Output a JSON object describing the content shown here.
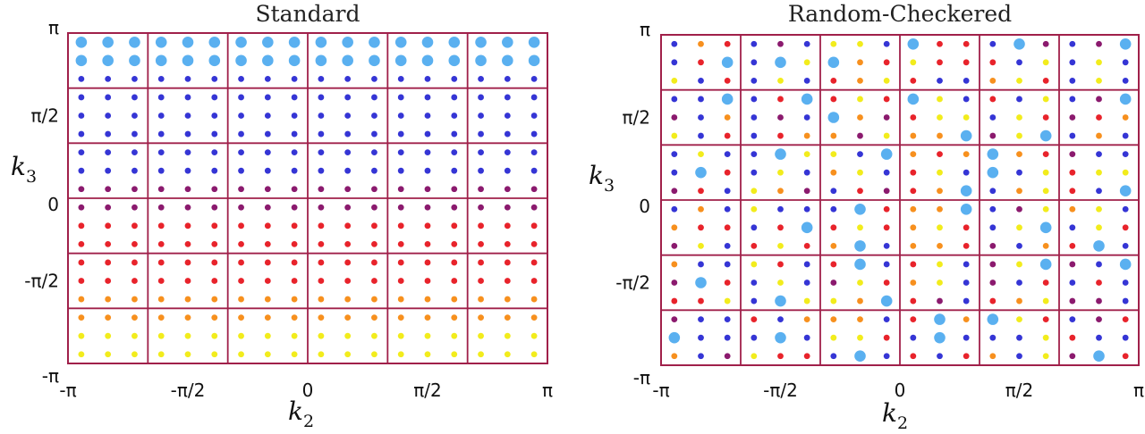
{
  "chart_data": [
    {
      "type": "scatter",
      "title": "Standard",
      "xlabel": "k",
      "xlabel_sub": "2",
      "ylabel": "k",
      "ylabel_sub": "3",
      "xlim": [
        -3.1416,
        3.1416
      ],
      "ylim": [
        -3.1416,
        3.1416
      ],
      "xticks": [
        "-π",
        "-π/2",
        "0",
        "π/2",
        "π"
      ],
      "yticks": [
        "-π",
        "-π/2",
        "0",
        "π/2",
        "π"
      ],
      "block_grid": {
        "cols": 6,
        "rows": 6
      },
      "points_per_block": {
        "cols": 3,
        "rows": 3
      },
      "colors": {
        "b": "#5ab0f0",
        "d": "#3535d5",
        "p": "#8b1a6e",
        "r": "#e8232b",
        "o": "#f7901e",
        "y": "#f2ec1c",
        "frame": "#a0204a"
      },
      "point_rows_top_to_bottom": [
        "bbbbbbbbbbbbbbbbbb",
        "bbbbbbbbbbbbbbbbbb",
        "dddddddddddddddddd",
        "dddddddddddddddddd",
        "dddddddddddddddddd",
        "dddddddddddddddddd",
        "dddddddddddddddddd",
        "dddddddddddddddddd",
        "pppppppppppppppppp",
        "pppppppppppppppppp",
        "rrrrrrrrrrrrrrrrrr",
        "rrrrrrrrrrrrrrrrrr",
        "rrrrrrrrrrrrrrrrrr",
        "rrrrrrrrrrrrrrrrrr",
        "oooooooooooooooooo",
        "oooooooooooooooooo",
        "yyyyyyyyyyyyyyyyyy",
        "yyyyyyyyyyyyyyyyyy"
      ]
    },
    {
      "type": "scatter",
      "title": "Random-Checkered",
      "xlabel": "k",
      "xlabel_sub": "2",
      "ylabel": "k",
      "ylabel_sub": "3",
      "xlim": [
        -3.1416,
        3.1416
      ],
      "ylim": [
        -3.1416,
        3.1416
      ],
      "xticks": [
        "-π",
        "-π/2",
        "0",
        "π/2",
        "π"
      ],
      "yticks": [
        "-π",
        "-π/2",
        "0",
        "π/2",
        "π"
      ],
      "block_grid": {
        "cols": 6,
        "rows": 6
      },
      "points_per_block": {
        "cols": 3,
        "rows": 3
      },
      "colors": {
        "b": "#5ab0f0",
        "d": "#3535d5",
        "p": "#8b1a6e",
        "r": "#e8232b",
        "o": "#f7901e",
        "y": "#f2ec1c",
        "frame": "#a0204a"
      },
      "point_rows_top_to_bottom": [
        "dordpdyydbrrdbpdpb",
        "drbdbyboryrrrdydyd",
        "ydrdydroyrddoyrdyd",
        "ddbdrbryrbydrdydpb",
        "pdodpdbopryydyrpro",
        "ydrdroopyoobpybdod",
        "dyddbyydboroborpdd",
        "dbrdydoydrydbdyryy",
        "prdyopdrprobdoyrdb",
        "dodydddbroobdpyoyd",
        "orrdrbryroyrdybdyr",
        "pydryrobdoorpdorbd",
        "oddyrdrbdrydpybpdb",
        "pbrdydpyroydpdrdrd",
        "rrydbyyobrpdroyppd",
        "pddrdooodrbobyrdpr",
        "bdddbdyyrdbdddyrdd",
        "odpyrrdbdrdrodypbr"
      ]
    }
  ]
}
